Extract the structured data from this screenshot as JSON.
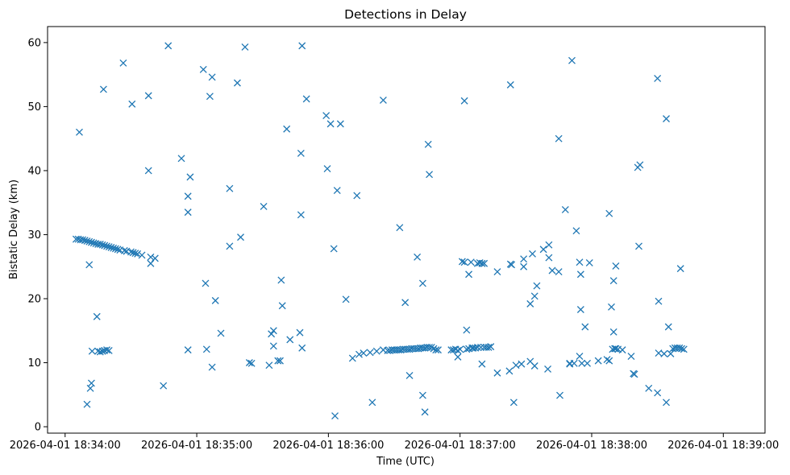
{
  "chart_data": {
    "type": "scatter",
    "title": "Detections in Delay",
    "xlabel": "Time (UTC)",
    "ylabel": "Bistatic Delay (km)",
    "marker": "x",
    "color": "#1f77b4",
    "x_unit": "seconds after 2026-04-01 18:34:00",
    "xlim": [
      -8,
      319
    ],
    "ylim": [
      -1,
      62.5
    ],
    "x_ticks": [
      {
        "value": 0,
        "label": "2026-04-01 18:34:00"
      },
      {
        "value": 60,
        "label": "2026-04-01 18:35:00"
      },
      {
        "value": 120,
        "label": "2026-04-01 18:36:00"
      },
      {
        "value": 180,
        "label": "2026-04-01 18:37:00"
      },
      {
        "value": 240,
        "label": "2026-04-01 18:38:00"
      },
      {
        "value": 300,
        "label": "2026-04-01 18:39:00"
      }
    ],
    "y_ticks": [
      {
        "value": 0,
        "label": "0"
      },
      {
        "value": 10,
        "label": "10"
      },
      {
        "value": 20,
        "label": "20"
      },
      {
        "value": 30,
        "label": "30"
      },
      {
        "value": 40,
        "label": "40"
      },
      {
        "value": 50,
        "label": "50"
      },
      {
        "value": 60,
        "label": "60"
      }
    ],
    "grid": false,
    "legend": "none",
    "points": [
      [
        5,
        29.3
      ],
      [
        6,
        29.3
      ],
      [
        7,
        29.2
      ],
      [
        8,
        29.2
      ],
      [
        9,
        29.1
      ],
      [
        10,
        29.0
      ],
      [
        11,
        28.9
      ],
      [
        12,
        28.8
      ],
      [
        13,
        28.7
      ],
      [
        14,
        28.6
      ],
      [
        15,
        28.5
      ],
      [
        16,
        28.5
      ],
      [
        17,
        28.4
      ],
      [
        18,
        28.3
      ],
      [
        19,
        28.2
      ],
      [
        20,
        28.1
      ],
      [
        21,
        28.0
      ],
      [
        22,
        27.9
      ],
      [
        23,
        27.8
      ],
      [
        24,
        27.7
      ],
      [
        25,
        27.6
      ],
      [
        27,
        27.5
      ],
      [
        28,
        27.4
      ],
      [
        30,
        27.3
      ],
      [
        31,
        27.2
      ],
      [
        32,
        27.1
      ],
      [
        33,
        27.0
      ],
      [
        35,
        26.8
      ],
      [
        39,
        26.5
      ],
      [
        41,
        26.3
      ],
      [
        6.5,
        46.0
      ],
      [
        10,
        3.5
      ],
      [
        11,
        25.3
      ],
      [
        11.5,
        6.0
      ],
      [
        12,
        6.8
      ],
      [
        12.3,
        11.8
      ],
      [
        14.5,
        17.2
      ],
      [
        15,
        11.8
      ],
      [
        16,
        11.7
      ],
      [
        17,
        11.8
      ],
      [
        18,
        11.9
      ],
      [
        19,
        12.0
      ],
      [
        20,
        11.9
      ],
      [
        17.5,
        52.7
      ],
      [
        26.5,
        56.8
      ],
      [
        30.5,
        50.4
      ],
      [
        38,
        51.7
      ],
      [
        38,
        40.0
      ],
      [
        39,
        25.5
      ],
      [
        47,
        59.5
      ],
      [
        44.8,
        6.4
      ],
      [
        53,
        41.9
      ],
      [
        56,
        12.0
      ],
      [
        56,
        33.5
      ],
      [
        56,
        36.0
      ],
      [
        57,
        39.0
      ],
      [
        63,
        55.8
      ],
      [
        64,
        22.4
      ],
      [
        64.5,
        12.1
      ],
      [
        66,
        51.6
      ],
      [
        67,
        54.6
      ],
      [
        67,
        9.3
      ],
      [
        68.5,
        19.7
      ],
      [
        71,
        14.6
      ],
      [
        75,
        28.2
      ],
      [
        75,
        37.2
      ],
      [
        78.5,
        53.7
      ],
      [
        80,
        29.6
      ],
      [
        82,
        59.3
      ],
      [
        84,
        10.0
      ],
      [
        85,
        9.9
      ],
      [
        90.5,
        34.4
      ],
      [
        93,
        9.6
      ],
      [
        94,
        14.5
      ],
      [
        95,
        12.6
      ],
      [
        95,
        15.0
      ],
      [
        97,
        10.3
      ],
      [
        98,
        10.3
      ],
      [
        98.5,
        22.9
      ],
      [
        99,
        18.9
      ],
      [
        101,
        46.5
      ],
      [
        102.5,
        13.6
      ],
      [
        107,
        14.7
      ],
      [
        107.5,
        33.1
      ],
      [
        107.5,
        42.7
      ],
      [
        108,
        12.3
      ],
      [
        108,
        59.5
      ],
      [
        110,
        51.2
      ],
      [
        119,
        48.6
      ],
      [
        119.5,
        40.3
      ],
      [
        121,
        47.3
      ],
      [
        122.5,
        27.8
      ],
      [
        123,
        1.7
      ],
      [
        124,
        36.9
      ],
      [
        125.5,
        47.3
      ],
      [
        128,
        19.9
      ],
      [
        131,
        10.7
      ],
      [
        133,
        36.1
      ],
      [
        134,
        11.3
      ],
      [
        136,
        11.5
      ],
      [
        139,
        11.6
      ],
      [
        140,
        3.8
      ],
      [
        142,
        11.8
      ],
      [
        145,
        12.0
      ],
      [
        145,
        51.0
      ],
      [
        147,
        11.9
      ],
      [
        148,
        11.9
      ],
      [
        149,
        12.0
      ],
      [
        150,
        12.0
      ],
      [
        151,
        12.0
      ],
      [
        152,
        12.0
      ],
      [
        152.5,
        31.1
      ],
      [
        153,
        12.0
      ],
      [
        154,
        12.1
      ],
      [
        155,
        12.1
      ],
      [
        155,
        19.4
      ],
      [
        156,
        12.1
      ],
      [
        157,
        8.0
      ],
      [
        157,
        12.1
      ],
      [
        158,
        12.2
      ],
      [
        159,
        12.2
      ],
      [
        160,
        12.2
      ],
      [
        160.5,
        26.5
      ],
      [
        161,
        12.2
      ],
      [
        162,
        12.3
      ],
      [
        163,
        12.3
      ],
      [
        163,
        22.4
      ],
      [
        163,
        4.9
      ],
      [
        164,
        12.3
      ],
      [
        164,
        2.3
      ],
      [
        165,
        12.4
      ],
      [
        165.5,
        44.1
      ],
      [
        166,
        12.4
      ],
      [
        166,
        39.4
      ],
      [
        167,
        12.4
      ],
      [
        168,
        12.2
      ],
      [
        169,
        12.0
      ],
      [
        170,
        12.0
      ],
      [
        176,
        12.0
      ],
      [
        177,
        12.0
      ],
      [
        178,
        12.1
      ],
      [
        179,
        11.9
      ],
      [
        179,
        10.9
      ],
      [
        180,
        12.1
      ],
      [
        181,
        25.8
      ],
      [
        182,
        25.7
      ],
      [
        182,
        50.9
      ],
      [
        183,
        12.1
      ],
      [
        183,
        15.1
      ],
      [
        184,
        23.8
      ],
      [
        184,
        12.2
      ],
      [
        185,
        25.7
      ],
      [
        185.5,
        12.3
      ],
      [
        186,
        12.3
      ],
      [
        187,
        12.3
      ],
      [
        188,
        25.5
      ],
      [
        188,
        12.4
      ],
      [
        189,
        25.6
      ],
      [
        189.5,
        12.4
      ],
      [
        190,
        9.8
      ],
      [
        190,
        25.5
      ],
      [
        191,
        12.4
      ],
      [
        191,
        25.5
      ],
      [
        192,
        12.4
      ],
      [
        193,
        12.4
      ],
      [
        194,
        12.5
      ],
      [
        197,
        24.2
      ],
      [
        197,
        8.4
      ],
      [
        202.5,
        8.7
      ],
      [
        203,
        53.4
      ],
      [
        203,
        25.4
      ],
      [
        203.5,
        25.3
      ],
      [
        204.5,
        3.8
      ],
      [
        205.5,
        9.6
      ],
      [
        208,
        9.8
      ],
      [
        209,
        25.0
      ],
      [
        209,
        26.2
      ],
      [
        212,
        10.2
      ],
      [
        212,
        19.2
      ],
      [
        213,
        27.0
      ],
      [
        214,
        9.5
      ],
      [
        214,
        20.4
      ],
      [
        215,
        22.0
      ],
      [
        218,
        27.7
      ],
      [
        220,
        9.0
      ],
      [
        220.5,
        28.4
      ],
      [
        220.5,
        26.4
      ],
      [
        222,
        24.4
      ],
      [
        225,
        45.0
      ],
      [
        225,
        24.2
      ],
      [
        225.5,
        4.9
      ],
      [
        228,
        33.9
      ],
      [
        230,
        9.9
      ],
      [
        230,
        9.8
      ],
      [
        231,
        57.2
      ],
      [
        232,
        9.9
      ],
      [
        233,
        30.6
      ],
      [
        234.5,
        11.0
      ],
      [
        234.5,
        25.7
      ],
      [
        235,
        23.8
      ],
      [
        235,
        18.3
      ],
      [
        235.5,
        9.9
      ],
      [
        237,
        15.6
      ],
      [
        238,
        9.9
      ],
      [
        239,
        25.6
      ],
      [
        243,
        10.3
      ],
      [
        247,
        10.5
      ],
      [
        248,
        10.3
      ],
      [
        248,
        33.3
      ],
      [
        249,
        18.7
      ],
      [
        249.5,
        12.1
      ],
      [
        250,
        14.8
      ],
      [
        250,
        22.8
      ],
      [
        250.5,
        12.2
      ],
      [
        251,
        25.1
      ],
      [
        251,
        12.2
      ],
      [
        252,
        12.1
      ],
      [
        254,
        12.0
      ],
      [
        258,
        11.0
      ],
      [
        259,
        8.3
      ],
      [
        259.5,
        8.2
      ],
      [
        261,
        40.5
      ],
      [
        261.5,
        28.2
      ],
      [
        262,
        40.9
      ],
      [
        266,
        6.0
      ],
      [
        270,
        54.4
      ],
      [
        270,
        5.3
      ],
      [
        270.5,
        19.6
      ],
      [
        270.5,
        11.5
      ],
      [
        273,
        11.4
      ],
      [
        274,
        3.8
      ],
      [
        274,
        48.1
      ],
      [
        275,
        15.6
      ],
      [
        276,
        11.4
      ],
      [
        277,
        12.2
      ],
      [
        278,
        12.3
      ],
      [
        279,
        12.3
      ],
      [
        280,
        12.3
      ],
      [
        280.5,
        24.7
      ],
      [
        281,
        12.2
      ],
      [
        282,
        12.1
      ]
    ]
  }
}
